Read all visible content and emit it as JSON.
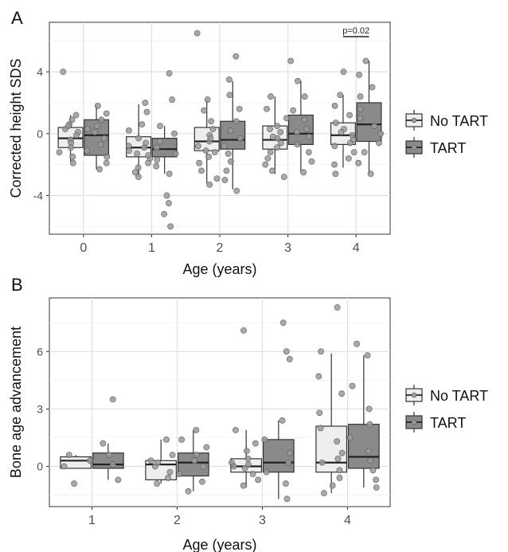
{
  "legend": {
    "entries": [
      {
        "label": "No TART",
        "fill": "#eeeeee"
      },
      {
        "label": "TART",
        "fill": "#8a8a8a"
      }
    ],
    "position": "right"
  },
  "colors": {
    "panel_bg": "#ffffff",
    "grid": "#e6e6e6",
    "box_stroke": "#333333",
    "point_fill": "#9a9a9a",
    "point_stroke": "#5a5a5a"
  },
  "chart_data": [
    {
      "type": "boxplot",
      "panel_label": "A",
      "xlabel": "Age (years)",
      "ylabel": "Corrected height SDS",
      "categories": [
        "0",
        "1",
        "2",
        "3",
        "4"
      ],
      "yticks": [
        -4,
        0,
        4
      ],
      "ylim": [
        -6.5,
        7.2
      ],
      "grid": true,
      "annotation": {
        "text": "p=0.02",
        "category": "4"
      },
      "series": [
        {
          "name": "No TART",
          "boxes": [
            {
              "category": "0",
              "whisker_low": -1.8,
              "q1": -0.9,
              "median": -0.3,
              "q3": 0.4,
              "whisker_high": 1.2
            },
            {
              "category": "1",
              "whisker_low": -2.8,
              "q1": -1.5,
              "median": -0.9,
              "q3": -0.2,
              "whisker_high": 1.9
            },
            {
              "category": "2",
              "whisker_low": -3.2,
              "q1": -1.1,
              "median": -0.5,
              "q3": 0.4,
              "whisker_high": 2.2
            },
            {
              "category": "3",
              "whisker_low": -2.6,
              "q1": -1.0,
              "median": -0.4,
              "q3": 0.5,
              "whisker_high": 2.4
            },
            {
              "category": "4",
              "whisker_low": -2.2,
              "q1": -0.7,
              "median": -0.1,
              "q3": 0.7,
              "whisker_high": 2.5
            }
          ],
          "points": [
            {
              "category": "0",
              "values": [
                4.0,
                1.2,
                0.9,
                0.6,
                0.3,
                0.1,
                -0.1,
                -0.4,
                -0.6,
                -0.9,
                -1.2,
                -1.5,
                -1.9,
                0.5
              ]
            },
            {
              "category": "1",
              "values": [
                2.0,
                1.4,
                0.6,
                0.2,
                -0.3,
                -0.6,
                -0.9,
                -1.1,
                -1.3,
                -1.6,
                -1.9,
                -2.2,
                -2.5,
                -2.8,
                -0.8,
                -1.4
              ]
            },
            {
              "category": "2",
              "values": [
                6.5,
                2.2,
                1.5,
                0.8,
                0.3,
                -0.1,
                -0.5,
                -0.8,
                -1.1,
                -1.5,
                -1.9,
                -2.4,
                -2.9,
                -3.3,
                -0.3,
                -1.2
              ]
            },
            {
              "category": "3",
              "values": [
                2.4,
                1.6,
                1.0,
                0.5,
                0.1,
                -0.3,
                -0.6,
                -0.9,
                -1.2,
                -1.6,
                -2.0,
                -2.4,
                -2.8,
                -0.2,
                0.3
              ]
            },
            {
              "category": "4",
              "values": [
                4.0,
                2.5,
                1.8,
                1.2,
                0.7,
                0.3,
                -0.1,
                -0.4,
                -0.8,
                -1.2,
                -1.6,
                -2.0,
                -2.6,
                0.1,
                -0.6
              ]
            }
          ]
        },
        {
          "name": "TART",
          "boxes": [
            {
              "category": "0",
              "whisker_low": -2.3,
              "q1": -1.4,
              "median": -0.1,
              "q3": 0.9,
              "whisker_high": 1.8
            },
            {
              "category": "1",
              "whisker_low": -2.6,
              "q1": -1.5,
              "median": -1.0,
              "q3": -0.3,
              "whisker_high": 0.5
            },
            {
              "category": "2",
              "whisker_low": -3.6,
              "q1": -1.0,
              "median": -0.4,
              "q3": 0.8,
              "whisker_high": 3.4
            },
            {
              "category": "3",
              "whisker_low": -2.5,
              "q1": -0.7,
              "median": 0.0,
              "q3": 1.2,
              "whisker_high": 3.4
            },
            {
              "category": "4",
              "whisker_low": -2.6,
              "q1": -0.5,
              "median": 0.6,
              "q3": 2.0,
              "whisker_high": 4.7
            }
          ],
          "points": [
            {
              "category": "0",
              "values": [
                1.8,
                1.3,
                0.9,
                0.5,
                0.1,
                -0.3,
                -0.7,
                -1.1,
                -1.5,
                -1.9,
                -2.3,
                0.3
              ]
            },
            {
              "category": "1",
              "values": [
                3.9,
                2.2,
                0.5,
                0.0,
                -0.5,
                -0.9,
                -1.3,
                -1.7,
                -2.1,
                -2.6,
                -4.0,
                -4.5,
                -5.2,
                -6.0
              ]
            },
            {
              "category": "2",
              "values": [
                5.0,
                3.5,
                2.5,
                1.6,
                0.8,
                0.2,
                -0.3,
                -0.8,
                -1.3,
                -1.8,
                -2.4,
                -3.0,
                -3.7
              ]
            },
            {
              "category": "3",
              "values": [
                4.7,
                3.4,
                2.4,
                1.5,
                0.9,
                0.3,
                -0.2,
                -0.7,
                -1.2,
                -1.8,
                -2.5,
                0.1
              ]
            },
            {
              "category": "4",
              "values": [
                4.7,
                3.8,
                3.0,
                2.4,
                1.6,
                1.0,
                0.5,
                0.0,
                -0.6,
                -1.2,
                -1.9,
                -2.6
              ]
            }
          ]
        }
      ]
    },
    {
      "type": "boxplot",
      "panel_label": "B",
      "xlabel": "Age (years)",
      "ylabel": "Bone age advancement",
      "categories": [
        "1",
        "2",
        "3",
        "4"
      ],
      "yticks": [
        0,
        3,
        6
      ],
      "ylim": [
        -2.1,
        8.8
      ],
      "grid": true,
      "series": [
        {
          "name": "No TART",
          "boxes": [
            {
              "category": "1",
              "whisker_low": -0.1,
              "q1": -0.1,
              "median": 0.3,
              "q3": 0.5,
              "whisker_high": 0.6
            },
            {
              "category": "2",
              "whisker_low": -0.9,
              "q1": -0.7,
              "median": 0.1,
              "q3": 0.3,
              "whisker_high": 1.4
            },
            {
              "category": "3",
              "whisker_low": -1.1,
              "q1": -0.3,
              "median": 0.0,
              "q3": 0.4,
              "whisker_high": 1.9
            },
            {
              "category": "4",
              "whisker_low": -1.4,
              "q1": -0.3,
              "median": 0.2,
              "q3": 2.1,
              "whisker_high": 5.9
            }
          ],
          "points": [
            {
              "category": "1",
              "values": [
                0.6,
                0.3,
                0.0,
                -0.9
              ]
            },
            {
              "category": "2",
              "values": [
                1.4,
                0.6,
                0.3,
                0.0,
                -0.3,
                -0.6,
                -0.9,
                0.2
              ]
            },
            {
              "category": "3",
              "values": [
                7.1,
                1.9,
                1.2,
                0.8,
                0.4,
                0.1,
                -0.1,
                -0.4,
                -0.7,
                -1.0,
                0.2,
                0.0
              ]
            },
            {
              "category": "4",
              "values": [
                8.3,
                6.0,
                4.7,
                3.8,
                2.8,
                2.0,
                1.3,
                0.7,
                0.2,
                -0.2,
                -0.6,
                -1.0,
                -1.4,
                0.4
              ]
            }
          ]
        },
        {
          "name": "TART",
          "boxes": [
            {
              "category": "1",
              "whisker_low": -0.7,
              "q1": -0.1,
              "median": 0.1,
              "q3": 0.7,
              "whisker_high": 1.2
            },
            {
              "category": "2",
              "whisker_low": -1.3,
              "q1": -0.5,
              "median": 0.2,
              "q3": 0.7,
              "whisker_high": 1.9
            },
            {
              "category": "3",
              "whisker_low": -1.7,
              "q1": -0.3,
              "median": 0.2,
              "q3": 1.4,
              "whisker_high": 2.4
            },
            {
              "category": "4",
              "whisker_low": -1.1,
              "q1": -0.1,
              "median": 0.5,
              "q3": 2.2,
              "whisker_high": 5.8
            }
          ],
          "points": [
            {
              "category": "1",
              "values": [
                3.5,
                1.2,
                0.6,
                0.1,
                -0.7
              ]
            },
            {
              "category": "2",
              "values": [
                1.9,
                1.4,
                1.0,
                0.6,
                0.3,
                0.0,
                -0.4,
                -0.8,
                -1.3
              ]
            },
            {
              "category": "3",
              "values": [
                7.5,
                6.0,
                5.6,
                2.4,
                1.4,
                0.7,
                0.2,
                -0.3,
                -0.9,
                -1.7
              ]
            },
            {
              "category": "4",
              "values": [
                6.4,
                5.8,
                4.2,
                3.0,
                2.2,
                1.5,
                0.8,
                0.3,
                -0.2,
                -0.7,
                -1.1
              ]
            }
          ]
        }
      ]
    }
  ]
}
